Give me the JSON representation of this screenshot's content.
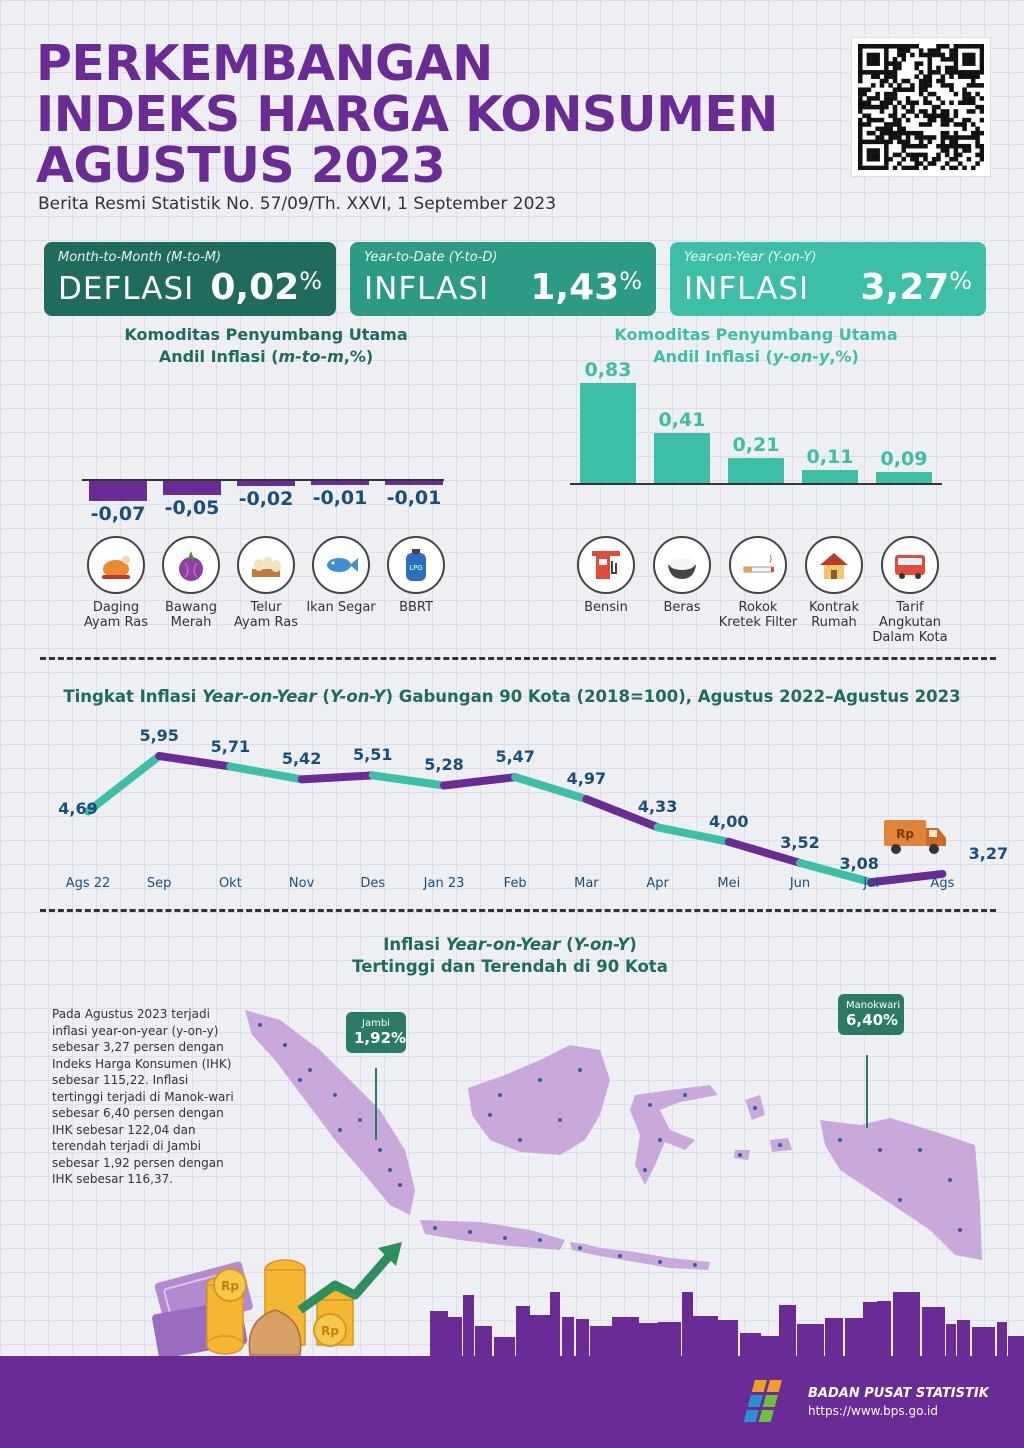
{
  "header": {
    "title_lines": [
      "PERKEMBANGAN",
      "INDEKS HARGA KONSUMEN",
      "AGUSTUS 2023"
    ],
    "subtitle": "Berita Resmi Statistik No. 57/09/Th. XXVI, 1 September 2023"
  },
  "cards": [
    {
      "label": "Month-to-Month (M-to-M)",
      "word": "DEFLASI",
      "value": "0,02",
      "unit": "%",
      "color": "#1f6b5e"
    },
    {
      "label": "Year-to-Date (Y-to-D)",
      "word": "INFLASI",
      "value": "1,43",
      "unit": "%",
      "color": "#2b9b85"
    },
    {
      "label": "Year-on-Year (Y-on-Y)",
      "word": "INFLASI",
      "value": "3,27",
      "unit": "%",
      "color": "#3cbfa6"
    }
  ],
  "mtm": {
    "title_line1": "Komoditas Penyumbang Utama",
    "title_line2_pre": "Andil Inflasi (",
    "title_line2_em": "m-to-m",
    "title_line2_post": ",%)",
    "items": [
      {
        "name1": "Daging",
        "name2": "Ayam Ras",
        "value": -0.07,
        "label": "-0,07",
        "icon": "chicken-icon"
      },
      {
        "name1": "Bawang",
        "name2": "Merah",
        "value": -0.05,
        "label": "-0,05",
        "icon": "onion-icon"
      },
      {
        "name1": "Telur",
        "name2": "Ayam Ras",
        "value": -0.02,
        "label": "-0,02",
        "icon": "egg-icon"
      },
      {
        "name1": "Ikan Segar",
        "name2": "",
        "value": -0.01,
        "label": "-0,01",
        "icon": "fish-icon"
      },
      {
        "name1": "BBRT",
        "name2": "",
        "value": -0.01,
        "label": "-0,01",
        "icon": "lpg-icon"
      }
    ],
    "bar_color": "#6a2b96"
  },
  "yoy": {
    "title_line1": "Komoditas Penyumbang Utama",
    "title_line2_pre": "Andil Inflasi (",
    "title_line2_em": "y-on-y",
    "title_line2_post": ",%)",
    "items": [
      {
        "name1": "Bensin",
        "name2": "",
        "name3": "",
        "value": 0.83,
        "label": "0,83",
        "icon": "gas-station-icon"
      },
      {
        "name1": "Beras",
        "name2": "",
        "name3": "",
        "value": 0.41,
        "label": "0,41",
        "icon": "rice-icon"
      },
      {
        "name1": "Rokok",
        "name2": "Kretek Filter",
        "name3": "",
        "value": 0.21,
        "label": "0,21",
        "icon": "cigarette-icon"
      },
      {
        "name1": "Kontrak",
        "name2": "Rumah",
        "name3": "",
        "value": 0.11,
        "label": "0,11",
        "icon": "house-icon"
      },
      {
        "name1": "Tarif",
        "name2": "Angkutan",
        "name3": "Dalam Kota",
        "value": 0.09,
        "label": "0,09",
        "icon": "bus-icon"
      }
    ],
    "bar_color": "#3cbfa6"
  },
  "chart_data": {
    "type": "line",
    "title_pre": "Tingkat Inflasi ",
    "title_em": "Year-on-Year",
    "title_mid": " (",
    "title_em2": "Y-on-Y",
    "title_post": ") Gabungan 90 Kota (2018=100), Agustus 2022–Agustus 2023",
    "categories": [
      "Ags 22",
      "Sep",
      "Okt",
      "Nov",
      "Des",
      "Jan 23",
      "Feb",
      "Mar",
      "Apr",
      "Mei",
      "Jun",
      "Jul",
      "Ags"
    ],
    "values": [
      4.69,
      5.95,
      5.71,
      5.42,
      5.51,
      5.28,
      5.47,
      4.97,
      4.33,
      4.0,
      3.52,
      3.08,
      3.27
    ],
    "labels": [
      "4,69",
      "5,95",
      "5,71",
      "5,42",
      "5,51",
      "5,28",
      "5,47",
      "4,97",
      "4,33",
      "4,00",
      "3,52",
      "3,08",
      "3,27"
    ],
    "colors": [
      "#3cbfa6",
      "#6a2b96"
    ],
    "truck_label": "Rp"
  },
  "map": {
    "title_pre": "Inflasi ",
    "title_em": "Year-on-Year",
    "title_mid": " (",
    "title_em2": "Y-on-Y",
    "title_post": ")",
    "title_line2": "Tertinggi dan Terendah di 90 Kota",
    "paragraph": "Pada Agustus 2023 terjadi inflasi year-on-year (y-on-y) sebesar 3,27 persen dengan Indeks Harga Konsumen (IHK) sebesar 115,22. Inflasi tertinggi terjadi di Manok-wari sebesar 6,40 persen dengan IHK sebesar 122,04 dan terendah terjadi di Jambi sebesar 1,92 persen dengan IHK sebesar 116,37.",
    "low": {
      "city": "Jambi",
      "value": "1,92%"
    },
    "high": {
      "city": "Manokwari",
      "value": "6,40%"
    },
    "island_color": "#c9a9dc"
  },
  "footer": {
    "org": "BADAN PUSAT STATISTIK",
    "url": "https://www.bps.go.id"
  }
}
